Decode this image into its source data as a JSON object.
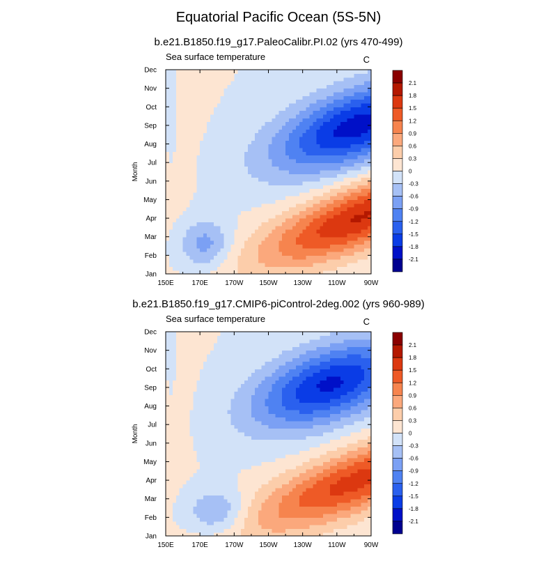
{
  "main_title": "Equatorial Pacific Ocean (5S-5N)",
  "colors": {
    "levels": [
      -2.1,
      -1.8,
      -1.5,
      -1.2,
      -0.9,
      -0.6,
      -0.3,
      0,
      0.3,
      0.6,
      0.9,
      1.2,
      1.5,
      1.8,
      2.1
    ],
    "fill": [
      "#000090",
      "#0010c8",
      "#0a3ce6",
      "#2a60ee",
      "#4f82f2",
      "#7ba0f4",
      "#a6c0f5",
      "#d2e2f8",
      "#fde5d2",
      "#fccdaa",
      "#fba87c",
      "#f6844e",
      "#ee5a26",
      "#dc3810",
      "#b41800",
      "#8a0000"
    ]
  },
  "chart_data": [
    {
      "type": "heatmap",
      "title": "b.e21.B1850.f19_g17.PaleoCalibr.PI.02 (yrs 470-499)",
      "left_label": "Sea surface temperature",
      "right_label": "C",
      "xlabel": "",
      "ylabel": "Month",
      "x_tick_labels": [
        "150E",
        "170E",
        "170W",
        "150W",
        "130W",
        "110W",
        "90W"
      ],
      "y_tick_labels": [
        "Jan",
        "Feb",
        "Mar",
        "Apr",
        "May",
        "Jun",
        "Jul",
        "Aug",
        "Sep",
        "Oct",
        "Nov",
        "Dec"
      ],
      "xlim": [
        150,
        270
      ],
      "ylim": [
        1,
        12
      ],
      "colorbar_labels": [
        "2.1",
        "1.8",
        "1.5",
        "1.2",
        "0.9",
        "0.6",
        "0.3",
        "0",
        "-0.3",
        "-0.6",
        "-0.9",
        "-1.2",
        "-1.5",
        "-1.8",
        "-2.1"
      ],
      "field": {
        "cold_amp": -1.95,
        "cold_lon": 262,
        "cold_month": 9.0,
        "cold_slope": 0.028,
        "cold_sx": 48,
        "cold_sy": 2.0,
        "warm_amp": 1.82,
        "warm_lon": 264,
        "warm_month": 4.1,
        "warm_slope": 0.034,
        "warm_sx": 58,
        "warm_sy": 1.75,
        "spring_cool_amp": -0.75,
        "spring_cool_lon": 173,
        "spring_cool_month": 2.6,
        "spring_cool_sx": 15,
        "spring_cool_sy": 1.3,
        "west_warm_amp": 0.3,
        "west_warm_month": 10.5,
        "west_warm_decay": 9,
        "winter_cool_amp": -0.35,
        "winter_cool_lon": 152,
        "winter_cool_month": 9.0,
        "winter_cool_sx": 4,
        "winter_cool_sy": 3
      }
    },
    {
      "type": "heatmap",
      "title": "b.e21.B1850.f19_g17.CMIP6-piControl-2deg.002 (yrs 960-989)",
      "left_label": "Sea surface temperature",
      "right_label": "C",
      "xlabel": "",
      "ylabel": "Month",
      "x_tick_labels": [
        "150E",
        "170E",
        "170W",
        "150W",
        "130W",
        "110W",
        "90W"
      ],
      "y_tick_labels": [
        "Jan",
        "Feb",
        "Mar",
        "Apr",
        "May",
        "Jun",
        "Jul",
        "Aug",
        "Sep",
        "Oct",
        "Nov",
        "Dec"
      ],
      "xlim": [
        150,
        270
      ],
      "ylim": [
        1,
        12
      ],
      "colorbar_labels": [
        "2.1",
        "1.8",
        "1.5",
        "1.2",
        "0.9",
        "0.6",
        "0.3",
        "0",
        "-0.3",
        "-0.6",
        "-0.9",
        "-1.2",
        "-1.5",
        "-1.8",
        "-2.1"
      ],
      "field": {
        "cold_amp": -1.85,
        "cold_lon": 246,
        "cold_month": 9.2,
        "cold_slope": 0.026,
        "cold_sx": 44,
        "cold_sy": 2.0,
        "warm_amp": 1.62,
        "warm_lon": 262,
        "warm_month": 4.0,
        "warm_slope": 0.034,
        "warm_sx": 62,
        "warm_sy": 1.75,
        "spring_cool_amp": -0.7,
        "spring_cool_lon": 180,
        "spring_cool_month": 2.3,
        "spring_cool_sx": 17,
        "spring_cool_sy": 1.2,
        "west_warm_amp": 0.3,
        "west_warm_month": 10.5,
        "west_warm_decay": 9,
        "winter_cool_amp": -0.2,
        "winter_cool_lon": 152,
        "winter_cool_month": 9.5,
        "winter_cool_sx": 4,
        "winter_cool_sy": 3
      }
    }
  ]
}
